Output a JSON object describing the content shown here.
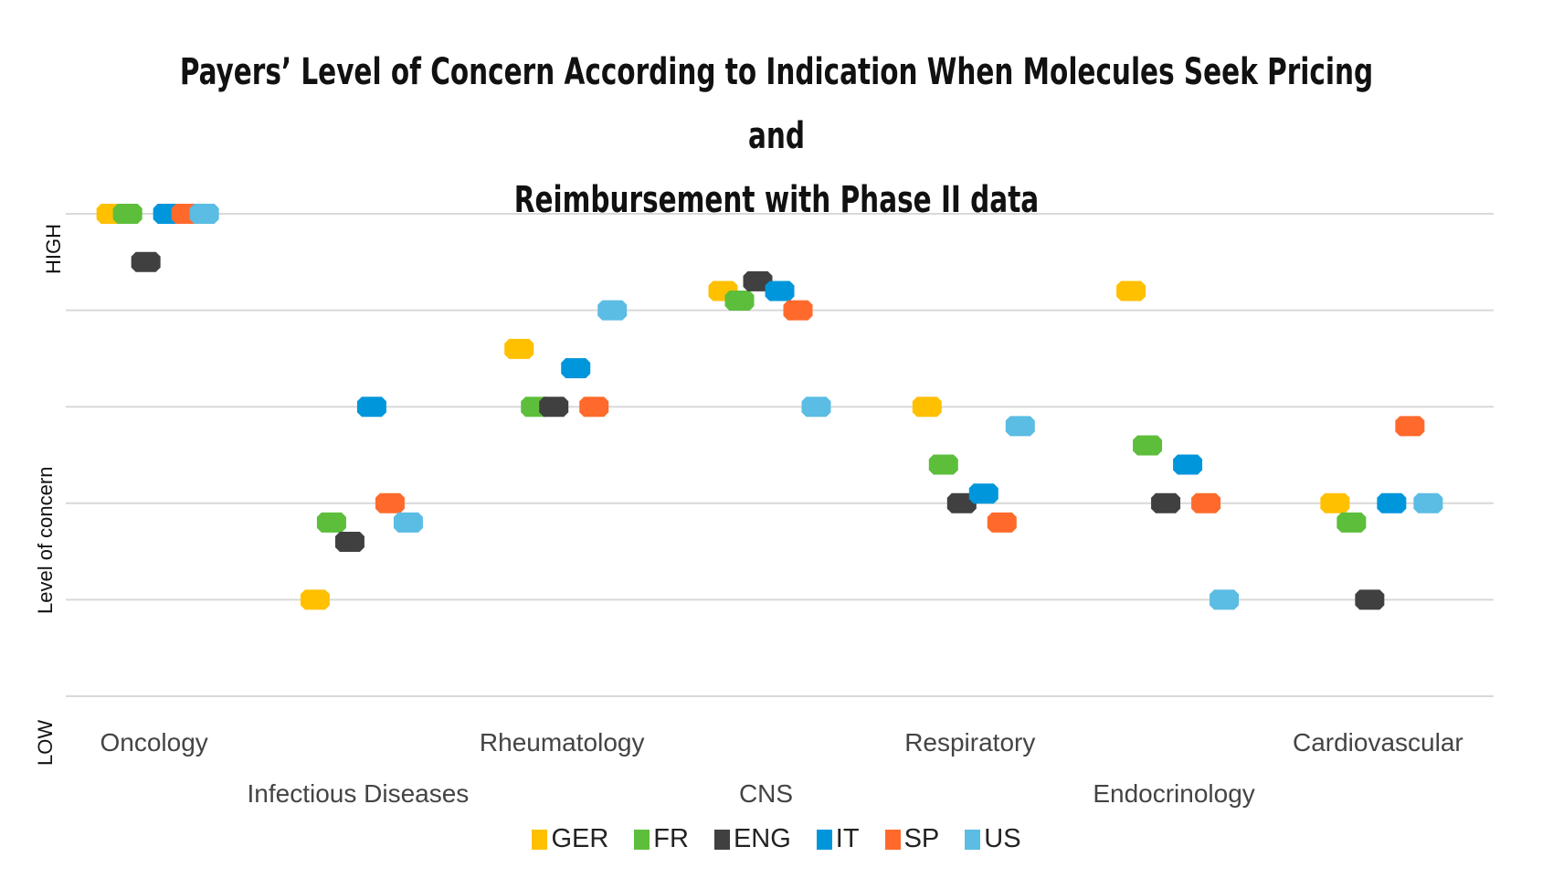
{
  "chart_data": {
    "type": "scatter",
    "title_lines": [
      "Payers’ Level of Concern According to Indication When Molecules Seek Pricing and",
      "Reimbursement with Phase II data"
    ],
    "ylabel": "Level of concern",
    "y_high_label": "HIGH",
    "y_low_label": "LOW",
    "ylim": [
      0,
      5
    ],
    "grid": true,
    "legend_position": "bottom",
    "categories": [
      "Oncology",
      "Infectious Diseases",
      "Rheumatology",
      "CNS",
      "Respiratory",
      "Endocrinology",
      "Cardiovascular"
    ],
    "category_label_rows": [
      0,
      1,
      0,
      1,
      0,
      1,
      0
    ],
    "series": [
      {
        "name": "GER",
        "color": "#FFC000",
        "values": [
          5.0,
          1.0,
          3.6,
          4.2,
          3.0,
          4.2,
          2.0
        ]
      },
      {
        "name": "FR",
        "color": "#5DBE3C",
        "values": [
          5.0,
          1.8,
          3.0,
          4.1,
          2.4,
          2.6,
          1.8
        ]
      },
      {
        "name": "ENG",
        "color": "#404040",
        "values": [
          4.5,
          1.6,
          3.0,
          4.3,
          2.0,
          2.0,
          1.0
        ]
      },
      {
        "name": "IT",
        "color": "#0096DC",
        "values": [
          5.0,
          3.0,
          3.4,
          4.2,
          2.1,
          2.4,
          2.0
        ]
      },
      {
        "name": "SP",
        "color": "#FF6A2C",
        "values": [
          5.0,
          2.0,
          3.0,
          4.0,
          1.8,
          2.0,
          2.8
        ]
      },
      {
        "name": "US",
        "color": "#5BBCE4",
        "values": [
          5.0,
          1.8,
          4.0,
          3.0,
          2.8,
          1.0,
          2.0
        ]
      }
    ]
  }
}
